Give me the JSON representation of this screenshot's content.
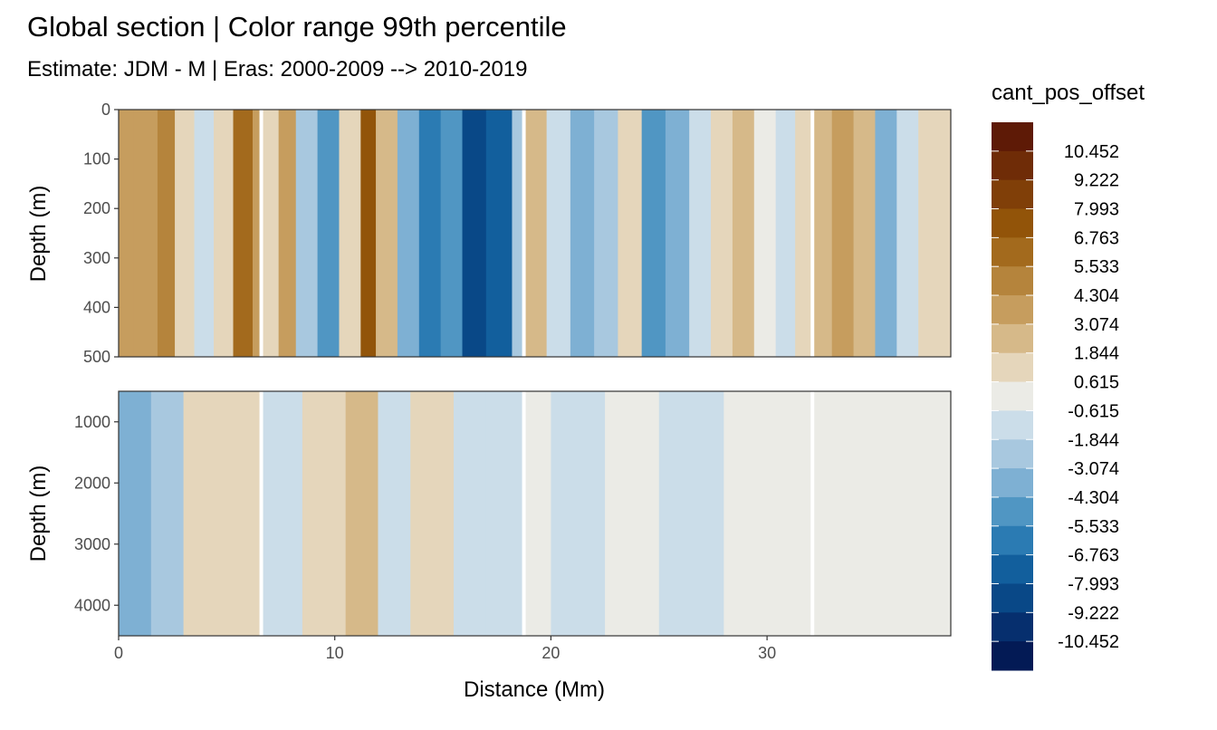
{
  "chart_data": {
    "type": "heatmap",
    "title": "Global section | Color range 99th percentile",
    "subtitle": "Estimate: JDM - M | Eras: 2000-2009 --> 2010-2019",
    "xlabel": "Distance (Mm)",
    "xlim": [
      0,
      38.5
    ],
    "x_ticks": [
      0,
      10,
      20,
      30
    ],
    "panels": [
      {
        "ylabel": "Depth (m)",
        "ylim": [
          0,
          500
        ],
        "y_reversed": true,
        "y_ticks": [
          0,
          100,
          200,
          300,
          400,
          500
        ]
      },
      {
        "ylabel": "Depth (m)",
        "ylim": [
          500,
          4500
        ],
        "y_reversed": true,
        "y_ticks": [
          1000,
          2000,
          3000,
          4000
        ]
      }
    ],
    "legend": {
      "title": "cant_pos_offset",
      "placement": "right",
      "labels": [
        "10.452",
        "9.222",
        "7.993",
        "6.763",
        "5.533",
        "4.304",
        "3.074",
        "1.844",
        "0.615",
        "-0.615",
        "-1.844",
        "-3.074",
        "-4.304",
        "-5.533",
        "-6.763",
        "-7.993",
        "-9.222",
        "-10.452"
      ],
      "colors": [
        "#5e1a06",
        "#6f2c07",
        "#803f08",
        "#925409",
        "#a36a1d",
        "#b5843c",
        "#c69d5e",
        "#d6b989",
        "#e5d6bb",
        "#ebebe6",
        "#cbdde9",
        "#a8c8df",
        "#7eb0d3",
        "#5096c3",
        "#2b7bb3",
        "#125f9d",
        "#094887",
        "#062f6e",
        "#031a55"
      ]
    },
    "section_gaps_x": [
      6.6,
      18.75,
      32.1
    ],
    "fields": [
      {
        "name": "upper",
        "bands": [
          {
            "x0": 0.0,
            "x1": 0.7,
            "value": 4.3
          },
          {
            "x0": 0.7,
            "x1": 1.8,
            "value": 3.6
          },
          {
            "x0": 1.8,
            "x1": 2.6,
            "value": 5.2
          },
          {
            "x0": 2.6,
            "x1": 3.5,
            "value": 1.3
          },
          {
            "x0": 3.5,
            "x1": 4.4,
            "value": -1.2
          },
          {
            "x0": 4.4,
            "x1": 5.3,
            "value": 1.1
          },
          {
            "x0": 5.3,
            "x1": 6.2,
            "value": 6.2
          },
          {
            "x0": 6.2,
            "x1": 6.6,
            "value": 3.4
          },
          {
            "x0": 6.6,
            "x1": 7.4,
            "value": 1.4
          },
          {
            "x0": 7.4,
            "x1": 8.2,
            "value": 4.2
          },
          {
            "x0": 8.2,
            "x1": 9.2,
            "value": -2.6
          },
          {
            "x0": 9.2,
            "x1": 10.2,
            "value": -4.8
          },
          {
            "x0": 10.2,
            "x1": 11.2,
            "value": 1.2
          },
          {
            "x0": 11.2,
            "x1": 11.9,
            "value": 7.1
          },
          {
            "x0": 11.9,
            "x1": 12.9,
            "value": 2.4
          },
          {
            "x0": 12.9,
            "x1": 13.9,
            "value": -3.4
          },
          {
            "x0": 13.9,
            "x1": 14.9,
            "value": -6.1
          },
          {
            "x0": 14.9,
            "x1": 15.9,
            "value": -4.4
          },
          {
            "x0": 15.9,
            "x1": 17.0,
            "value": -8.6
          },
          {
            "x0": 17.0,
            "x1": 18.2,
            "value": -7.2
          },
          {
            "x0": 18.2,
            "x1": 18.75,
            "value": -2.9
          },
          {
            "x0": 18.75,
            "x1": 19.8,
            "value": 2.2
          },
          {
            "x0": 19.8,
            "x1": 20.9,
            "value": -1.5
          },
          {
            "x0": 20.9,
            "x1": 22.0,
            "value": -3.1
          },
          {
            "x0": 22.0,
            "x1": 23.1,
            "value": -2.4
          },
          {
            "x0": 23.1,
            "x1": 24.2,
            "value": 1.2
          },
          {
            "x0": 24.2,
            "x1": 25.3,
            "value": -4.9
          },
          {
            "x0": 25.3,
            "x1": 26.4,
            "value": -3.6
          },
          {
            "x0": 26.4,
            "x1": 27.4,
            "value": -1.3
          },
          {
            "x0": 27.4,
            "x1": 28.4,
            "value": 1.4
          },
          {
            "x0": 28.4,
            "x1": 29.4,
            "value": 2.2
          },
          {
            "x0": 29.4,
            "x1": 30.4,
            "value": 0.4
          },
          {
            "x0": 30.4,
            "x1": 31.3,
            "value": -1.1
          },
          {
            "x0": 31.3,
            "x1": 32.1,
            "value": 1.2
          },
          {
            "x0": 32.1,
            "x1": 33.0,
            "value": 2.6
          },
          {
            "x0": 33.0,
            "x1": 34.0,
            "value": 3.9
          },
          {
            "x0": 34.0,
            "x1": 35.0,
            "value": 2.1
          },
          {
            "x0": 35.0,
            "x1": 36.0,
            "value": -4.2
          },
          {
            "x0": 36.0,
            "x1": 37.0,
            "value": -1.4
          },
          {
            "x0": 37.0,
            "x1": 38.5,
            "value": 1.6
          }
        ]
      },
      {
        "name": "lower",
        "bands": [
          {
            "x0": 0.0,
            "x1": 1.5,
            "value": -3.1
          },
          {
            "x0": 1.5,
            "x1": 3.0,
            "value": -2.4
          },
          {
            "x0": 3.0,
            "x1": 6.6,
            "value": 1.2
          },
          {
            "x0": 6.6,
            "x1": 8.5,
            "value": -1.3
          },
          {
            "x0": 8.5,
            "x1": 10.5,
            "value": 1.1
          },
          {
            "x0": 10.5,
            "x1": 12.0,
            "value": 2.3
          },
          {
            "x0": 12.0,
            "x1": 13.5,
            "value": -1.6
          },
          {
            "x0": 13.5,
            "x1": 15.5,
            "value": 0.9
          },
          {
            "x0": 15.5,
            "x1": 17.0,
            "value": -1.8
          },
          {
            "x0": 17.0,
            "x1": 18.75,
            "value": -0.9
          },
          {
            "x0": 18.75,
            "x1": 20.0,
            "value": 0.0
          },
          {
            "x0": 20.0,
            "x1": 22.5,
            "value": -1.2
          },
          {
            "x0": 22.5,
            "x1": 25.0,
            "value": 0.2
          },
          {
            "x0": 25.0,
            "x1": 28.0,
            "value": -0.9
          },
          {
            "x0": 28.0,
            "x1": 30.0,
            "value": 0.1
          },
          {
            "x0": 30.0,
            "x1": 32.1,
            "value": 0.0
          },
          {
            "x0": 32.1,
            "x1": 35.0,
            "value": 0.3
          },
          {
            "x0": 35.0,
            "x1": 38.5,
            "value": 0.0
          }
        ]
      }
    ]
  }
}
